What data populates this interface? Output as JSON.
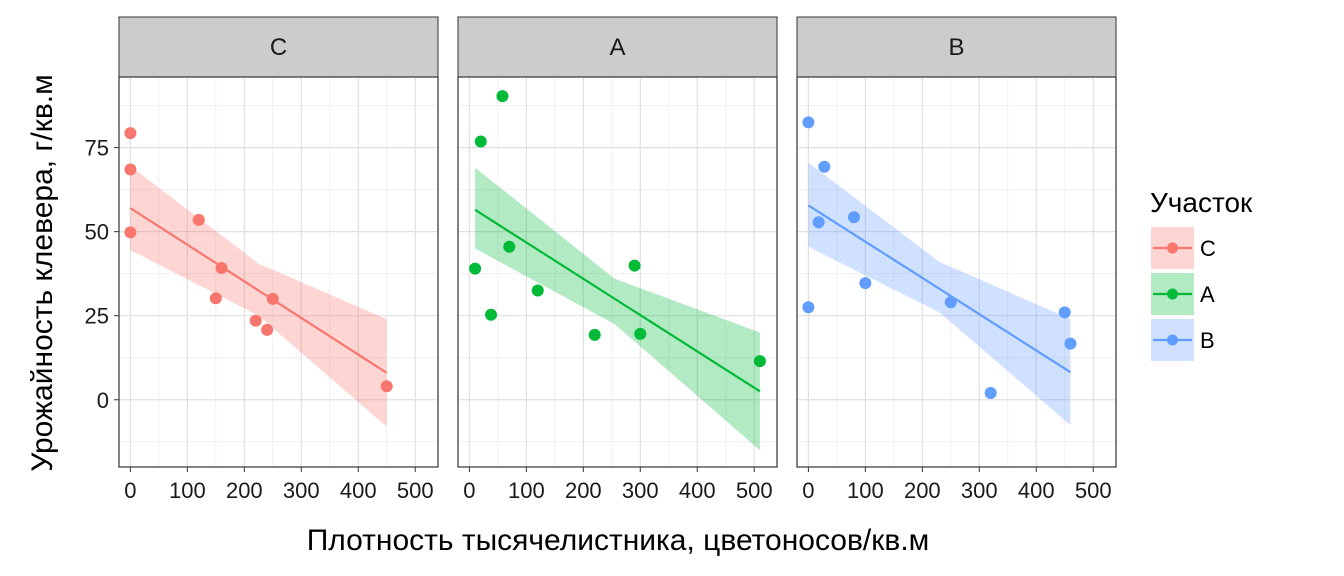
{
  "chart_data": {
    "type": "scatter",
    "xlabel": "Плотность тысячелистника, цветоносов/кв.м",
    "ylabel": "Урожайность клевера, г/кв.м",
    "xlim": [
      -20,
      540
    ],
    "ylim": [
      -20,
      96
    ],
    "x_ticks": [
      0,
      100,
      200,
      300,
      400,
      500
    ],
    "y_ticks": [
      0,
      25,
      50,
      75
    ],
    "grid": true,
    "legend": {
      "title": "Участок",
      "position": "right",
      "entries": [
        "C",
        "A",
        "B"
      ]
    },
    "panels": [
      {
        "strip": "C",
        "color": "#F8766D",
        "points": [
          [
            0,
            79.3
          ],
          [
            0,
            68.5
          ],
          [
            0,
            49.8
          ],
          [
            120,
            53.5
          ],
          [
            160,
            39.2
          ],
          [
            150,
            30.2
          ],
          [
            250,
            30.0
          ],
          [
            220,
            23.5
          ],
          [
            240,
            20.8
          ],
          [
            450,
            4.0
          ]
        ],
        "fit": {
          "x": [
            0,
            450
          ],
          "y": [
            57.0,
            8.0
          ]
        },
        "band": {
          "x": [
            0,
            225,
            450
          ],
          "lower": [
            44.5,
            25.0,
            -8.0
          ],
          "upper": [
            69.5,
            40.5,
            24.0
          ]
        }
      },
      {
        "strip": "A",
        "color": "#00BA38",
        "points": [
          [
            58,
            90.3
          ],
          [
            20,
            76.8
          ],
          [
            10,
            39.0
          ],
          [
            70,
            45.5
          ],
          [
            38,
            25.3
          ],
          [
            120,
            32.5
          ],
          [
            220,
            19.3
          ],
          [
            290,
            39.9
          ],
          [
            300,
            19.6
          ],
          [
            510,
            11.5
          ]
        ],
        "fit": {
          "x": [
            10,
            510
          ],
          "y": [
            56.5,
            2.5
          ]
        },
        "band": {
          "x": [
            10,
            255,
            510
          ],
          "lower": [
            45.0,
            22.5,
            -15.0
          ],
          "upper": [
            69.0,
            36.0,
            20.0
          ]
        }
      },
      {
        "strip": "B",
        "color": "#619CFF",
        "points": [
          [
            0,
            82.5
          ],
          [
            28,
            69.3
          ],
          [
            18,
            52.8
          ],
          [
            80,
            54.3
          ],
          [
            0,
            27.5
          ],
          [
            100,
            34.7
          ],
          [
            250,
            29.0
          ],
          [
            320,
            2.0
          ],
          [
            450,
            26.0
          ],
          [
            460,
            16.7
          ]
        ],
        "fit": {
          "x": [
            0,
            460
          ],
          "y": [
            57.8,
            8.2
          ]
        },
        "band": {
          "x": [
            0,
            230,
            460
          ],
          "lower": [
            45.5,
            26.0,
            -7.5
          ],
          "upper": [
            70.5,
            41.0,
            24.0
          ]
        }
      }
    ]
  }
}
